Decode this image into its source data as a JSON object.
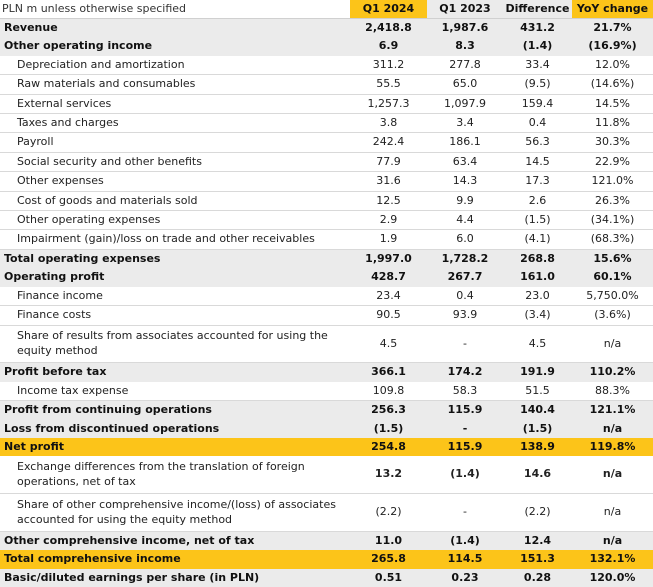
{
  "table": {
    "unit_label": "PLN m unless otherwise specified",
    "columns": [
      "Q1 2024",
      "Q1 2023",
      "Difference",
      "YoY change"
    ],
    "rows": [
      {
        "label": "Revenue",
        "q1_2024": "2,418.8",
        "q1_2023": "1,987.6",
        "difference": "431.2",
        "yoy": "21.7%"
      },
      {
        "label": "Other operating income",
        "q1_2024": "6.9",
        "q1_2023": "8.3",
        "difference": "(1.4)",
        "yoy": "(16.9%)"
      },
      {
        "label": "Depreciation and amortization",
        "q1_2024": "311.2",
        "q1_2023": "277.8",
        "difference": "33.4",
        "yoy": "12.0%"
      },
      {
        "label": "Raw materials and consumables",
        "q1_2024": "55.5",
        "q1_2023": "65.0",
        "difference": "(9.5)",
        "yoy": "(14.6%)"
      },
      {
        "label": "External services",
        "q1_2024": "1,257.3",
        "q1_2023": "1,097.9",
        "difference": "159.4",
        "yoy": "14.5%"
      },
      {
        "label": "Taxes and charges",
        "q1_2024": "3.8",
        "q1_2023": "3.4",
        "difference": "0.4",
        "yoy": "11.8%"
      },
      {
        "label": "Payroll",
        "q1_2024": "242.4",
        "q1_2023": "186.1",
        "difference": "56.3",
        "yoy": "30.3%"
      },
      {
        "label": "Social security and other benefits",
        "q1_2024": "77.9",
        "q1_2023": "63.4",
        "difference": "14.5",
        "yoy": "22.9%"
      },
      {
        "label": "Other expenses",
        "q1_2024": "31.6",
        "q1_2023": "14.3",
        "difference": "17.3",
        "yoy": "121.0%"
      },
      {
        "label": "Cost of goods and materials sold",
        "q1_2024": "12.5",
        "q1_2023": "9.9",
        "difference": "2.6",
        "yoy": "26.3%"
      },
      {
        "label": "Other operating expenses",
        "q1_2024": "2.9",
        "q1_2023": "4.4",
        "difference": "(1.5)",
        "yoy": "(34.1%)"
      },
      {
        "label": "Impairment (gain)/loss on trade and other receivables",
        "q1_2024": "1.9",
        "q1_2023": "6.0",
        "difference": "(4.1)",
        "yoy": "(68.3%)"
      },
      {
        "label": "Total operating expenses",
        "q1_2024": "1,997.0",
        "q1_2023": "1,728.2",
        "difference": "268.8",
        "yoy": "15.6%"
      },
      {
        "label": "Operating profit",
        "q1_2024": "428.7",
        "q1_2023": "267.7",
        "difference": "161.0",
        "yoy": "60.1%"
      },
      {
        "label": "Finance income",
        "q1_2024": "23.4",
        "q1_2023": "0.4",
        "difference": "23.0",
        "yoy": "5,750.0%"
      },
      {
        "label": "Finance costs",
        "q1_2024": "90.5",
        "q1_2023": "93.9",
        "difference": "(3.4)",
        "yoy": "(3.6%)"
      },
      {
        "label": "Share of results from associates accounted for using the equity method",
        "q1_2024": "4.5",
        "q1_2023": "-",
        "difference": "4.5",
        "yoy": "n/a"
      },
      {
        "label": "Profit before tax",
        "q1_2024": "366.1",
        "q1_2023": "174.2",
        "difference": "191.9",
        "yoy": "110.2%"
      },
      {
        "label": "Income tax expense",
        "q1_2024": "109.8",
        "q1_2023": "58.3",
        "difference": "51.5",
        "yoy": "88.3%"
      },
      {
        "label": "Profit from continuing operations",
        "q1_2024": "256.3",
        "q1_2023": "115.9",
        "difference": "140.4",
        "yoy": "121.1%"
      },
      {
        "label": "Loss from discontinued operations",
        "q1_2024": "(1.5)",
        "q1_2023": "-",
        "difference": "(1.5)",
        "yoy": "n/a"
      },
      {
        "label": "Net profit",
        "q1_2024": "254.8",
        "q1_2023": "115.9",
        "difference": "138.9",
        "yoy": "119.8%"
      },
      {
        "label": "Exchange differences from the translation of foreign operations, net of tax",
        "q1_2024": "13.2",
        "q1_2023": "(1.4)",
        "difference": "14.6",
        "yoy": "n/a"
      },
      {
        "label": "Share of other comprehensive income/(loss) of associates accounted for using the equity method",
        "q1_2024": "(2.2)",
        "q1_2023": "-",
        "difference": "(2.2)",
        "yoy": "n/a"
      },
      {
        "label": "Other comprehensive income, net of tax",
        "q1_2024": "11.0",
        "q1_2023": "(1.4)",
        "difference": "12.4",
        "yoy": "n/a"
      },
      {
        "label": "Total comprehensive income",
        "q1_2024": "265.8",
        "q1_2023": "114.5",
        "difference": "151.3",
        "yoy": "132.1%"
      },
      {
        "label": "Basic/diluted earnings per share (in PLN)",
        "q1_2024": "0.51",
        "q1_2023": "0.23",
        "difference": "0.28",
        "yoy": "120.0%"
      }
    ]
  }
}
